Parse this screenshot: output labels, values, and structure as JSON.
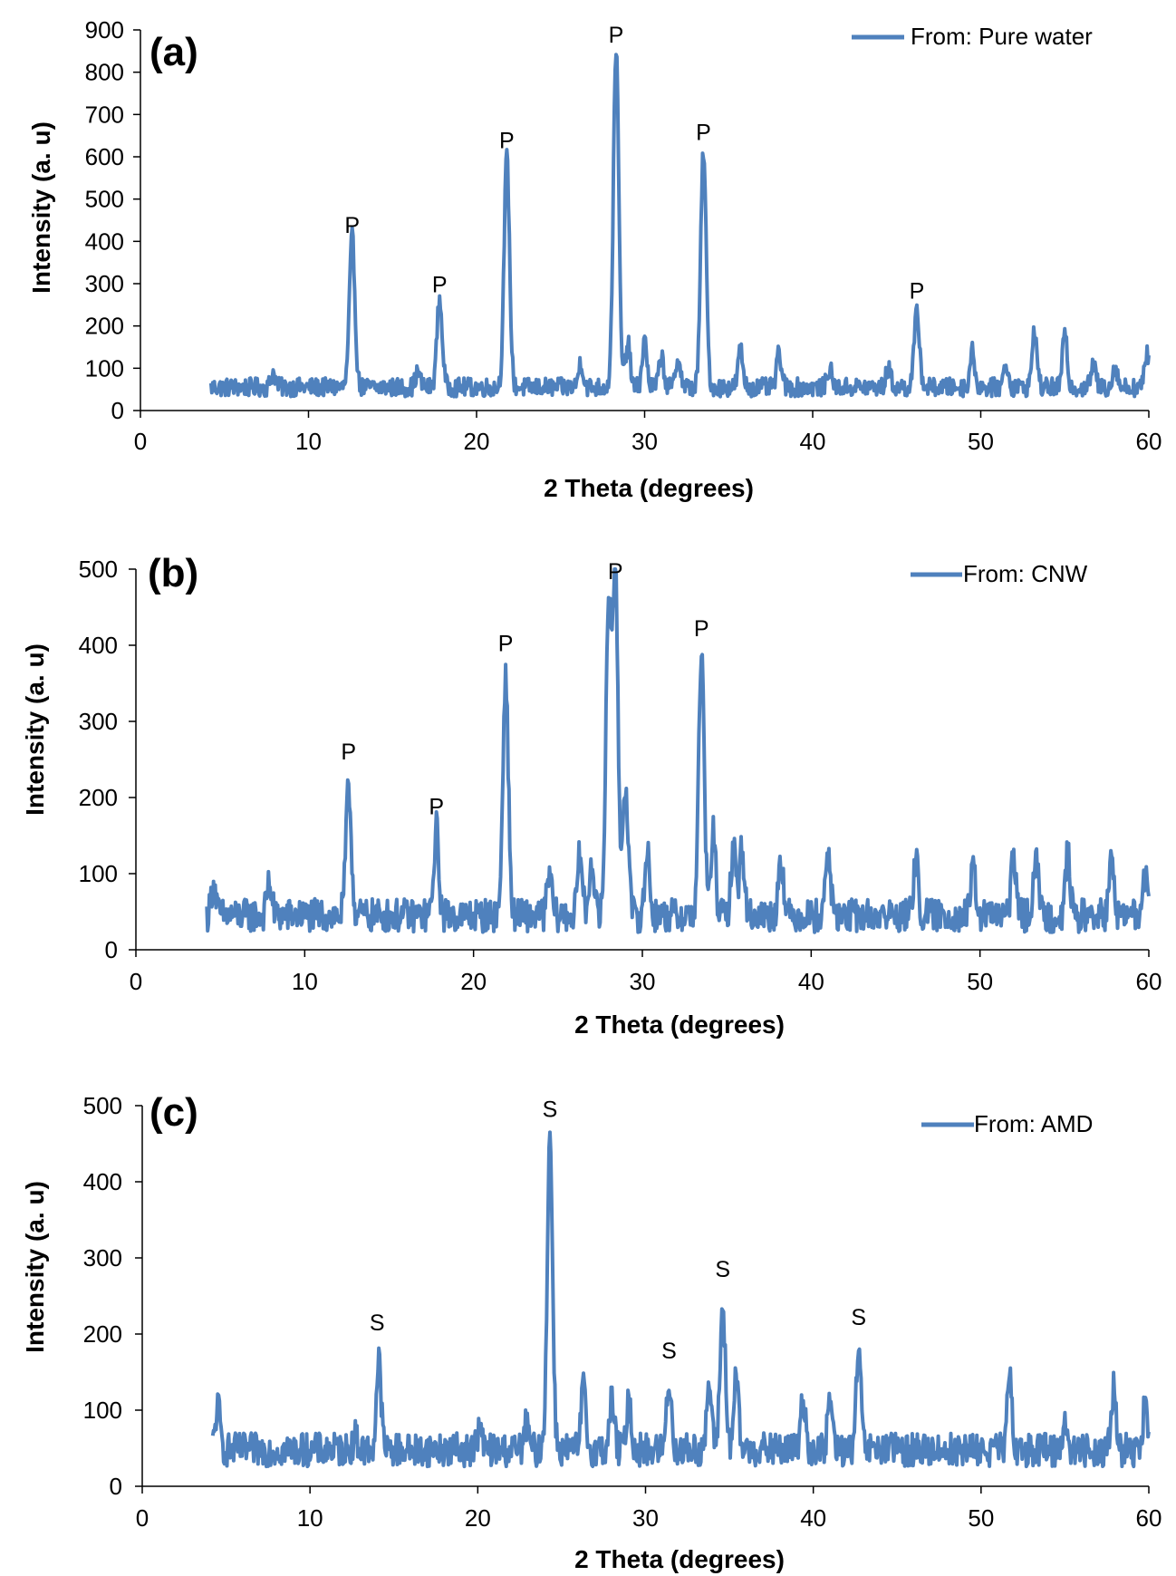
{
  "chart_data": [
    {
      "type": "line",
      "panel_label": "(a)",
      "xlabel": "2 Theta (degrees)",
      "ylabel": "Intensity (a. u)",
      "xlim": [
        0,
        60
      ],
      "ylim": [
        0,
        900
      ],
      "xticks": [
        0,
        10,
        20,
        30,
        40,
        50,
        60
      ],
      "yticks": [
        0,
        100,
        200,
        300,
        400,
        500,
        600,
        700,
        800,
        900
      ],
      "legend": "top-right",
      "color": "#4f81bd",
      "series": [
        {
          "name": "From: Pure water",
          "baseline": 55,
          "noise": 22
        }
      ],
      "peaks": [
        {
          "x": 7.9,
          "y": 90
        },
        {
          "x": 12.6,
          "y": 410
        },
        {
          "x": 16.5,
          "y": 90
        },
        {
          "x": 17.8,
          "y": 260
        },
        {
          "x": 21.8,
          "y": 600
        },
        {
          "x": 26.2,
          "y": 115
        },
        {
          "x": 28.3,
          "y": 860
        },
        {
          "x": 29.0,
          "y": 160
        },
        {
          "x": 30.0,
          "y": 165
        },
        {
          "x": 31.0,
          "y": 130
        },
        {
          "x": 32.0,
          "y": 125
        },
        {
          "x": 33.5,
          "y": 615
        },
        {
          "x": 35.7,
          "y": 145
        },
        {
          "x": 38.0,
          "y": 135
        },
        {
          "x": 41.0,
          "y": 100
        },
        {
          "x": 44.5,
          "y": 100
        },
        {
          "x": 46.2,
          "y": 230
        },
        {
          "x": 49.5,
          "y": 140
        },
        {
          "x": 51.5,
          "y": 110
        },
        {
          "x": 53.2,
          "y": 190
        },
        {
          "x": 55.0,
          "y": 180
        },
        {
          "x": 56.7,
          "y": 110
        },
        {
          "x": 58.0,
          "y": 105
        },
        {
          "x": 59.9,
          "y": 135
        }
      ],
      "annotations": [
        {
          "text": "P",
          "x": 12.6,
          "y": 420
        },
        {
          "text": "P",
          "x": 17.8,
          "y": 280
        },
        {
          "text": "P",
          "x": 21.8,
          "y": 620
        },
        {
          "text": "P",
          "x": 28.3,
          "y": 870
        },
        {
          "text": "P",
          "x": 33.5,
          "y": 640
        },
        {
          "text": "P",
          "x": 46.2,
          "y": 265
        }
      ]
    },
    {
      "type": "line",
      "panel_label": "(b)",
      "xlabel": "2 Theta (degrees)",
      "ylabel": "Intensity (a. u)",
      "xlim": [
        0,
        60
      ],
      "ylim": [
        0,
        500
      ],
      "xticks": [
        0,
        10,
        20,
        30,
        40,
        50,
        60
      ],
      "yticks": [
        0,
        100,
        200,
        300,
        400,
        500
      ],
      "legend": "top-right",
      "color": "#4f81bd",
      "series": [
        {
          "name": "From: CNW",
          "baseline": 45,
          "noise": 22
        }
      ],
      "peaks": [
        {
          "x": 4.6,
          "y": 85
        },
        {
          "x": 7.9,
          "y": 90
        },
        {
          "x": 12.6,
          "y": 210
        },
        {
          "x": 17.8,
          "y": 160
        },
        {
          "x": 21.9,
          "y": 360
        },
        {
          "x": 24.5,
          "y": 100
        },
        {
          "x": 26.3,
          "y": 125
        },
        {
          "x": 27.0,
          "y": 120
        },
        {
          "x": 28.0,
          "y": 450
        },
        {
          "x": 28.4,
          "y": 485
        },
        {
          "x": 29.0,
          "y": 220
        },
        {
          "x": 30.3,
          "y": 130
        },
        {
          "x": 33.5,
          "y": 390
        },
        {
          "x": 34.2,
          "y": 155
        },
        {
          "x": 35.4,
          "y": 140
        },
        {
          "x": 35.9,
          "y": 135
        },
        {
          "x": 38.2,
          "y": 125
        },
        {
          "x": 41.0,
          "y": 135
        },
        {
          "x": 46.2,
          "y": 120
        },
        {
          "x": 49.6,
          "y": 105
        },
        {
          "x": 52.0,
          "y": 125
        },
        {
          "x": 53.3,
          "y": 130
        },
        {
          "x": 55.2,
          "y": 125
        },
        {
          "x": 57.8,
          "y": 115
        },
        {
          "x": 59.8,
          "y": 95
        }
      ],
      "annotations": [
        {
          "text": "P",
          "x": 12.6,
          "y": 250
        },
        {
          "text": "P",
          "x": 17.8,
          "y": 178
        },
        {
          "text": "P",
          "x": 21.9,
          "y": 392
        },
        {
          "text": "P",
          "x": 28.4,
          "y": 487
        },
        {
          "text": "P",
          "x": 33.5,
          "y": 412
        }
      ]
    },
    {
      "type": "line",
      "panel_label": "(c)",
      "xlabel": "2 Theta (degrees)",
      "ylabel": "Intensity (a. u)",
      "xlim": [
        0,
        60
      ],
      "ylim": [
        0,
        500
      ],
      "xticks": [
        0,
        10,
        20,
        30,
        40,
        50,
        60
      ],
      "yticks": [
        0,
        100,
        200,
        300,
        400,
        500
      ],
      "legend": "top-right",
      "color": "#4f81bd",
      "series": [
        {
          "name": "From: AMD",
          "baseline": 48,
          "noise": 22
        }
      ],
      "peaks": [
        {
          "x": 4.5,
          "y": 105
        },
        {
          "x": 12.7,
          "y": 65
        },
        {
          "x": 14.1,
          "y": 165
        },
        {
          "x": 20.1,
          "y": 75
        },
        {
          "x": 22.9,
          "y": 80
        },
        {
          "x": 24.3,
          "y": 455
        },
        {
          "x": 26.3,
          "y": 130
        },
        {
          "x": 28.0,
          "y": 115
        },
        {
          "x": 29.0,
          "y": 110
        },
        {
          "x": 31.4,
          "y": 140
        },
        {
          "x": 33.8,
          "y": 135
        },
        {
          "x": 34.6,
          "y": 235
        },
        {
          "x": 35.4,
          "y": 140
        },
        {
          "x": 39.4,
          "y": 115
        },
        {
          "x": 41.0,
          "y": 115
        },
        {
          "x": 42.7,
          "y": 178
        },
        {
          "x": 51.7,
          "y": 140
        },
        {
          "x": 55.0,
          "y": 85
        },
        {
          "x": 57.9,
          "y": 128
        },
        {
          "x": 59.8,
          "y": 110
        }
      ],
      "annotations": [
        {
          "text": "S",
          "x": 14.0,
          "y": 205
        },
        {
          "text": "S",
          "x": 24.3,
          "y": 485
        },
        {
          "text": "S",
          "x": 31.4,
          "y": 168
        },
        {
          "text": "S",
          "x": 34.6,
          "y": 275
        },
        {
          "text": "S",
          "x": 42.7,
          "y": 212
        }
      ]
    }
  ]
}
